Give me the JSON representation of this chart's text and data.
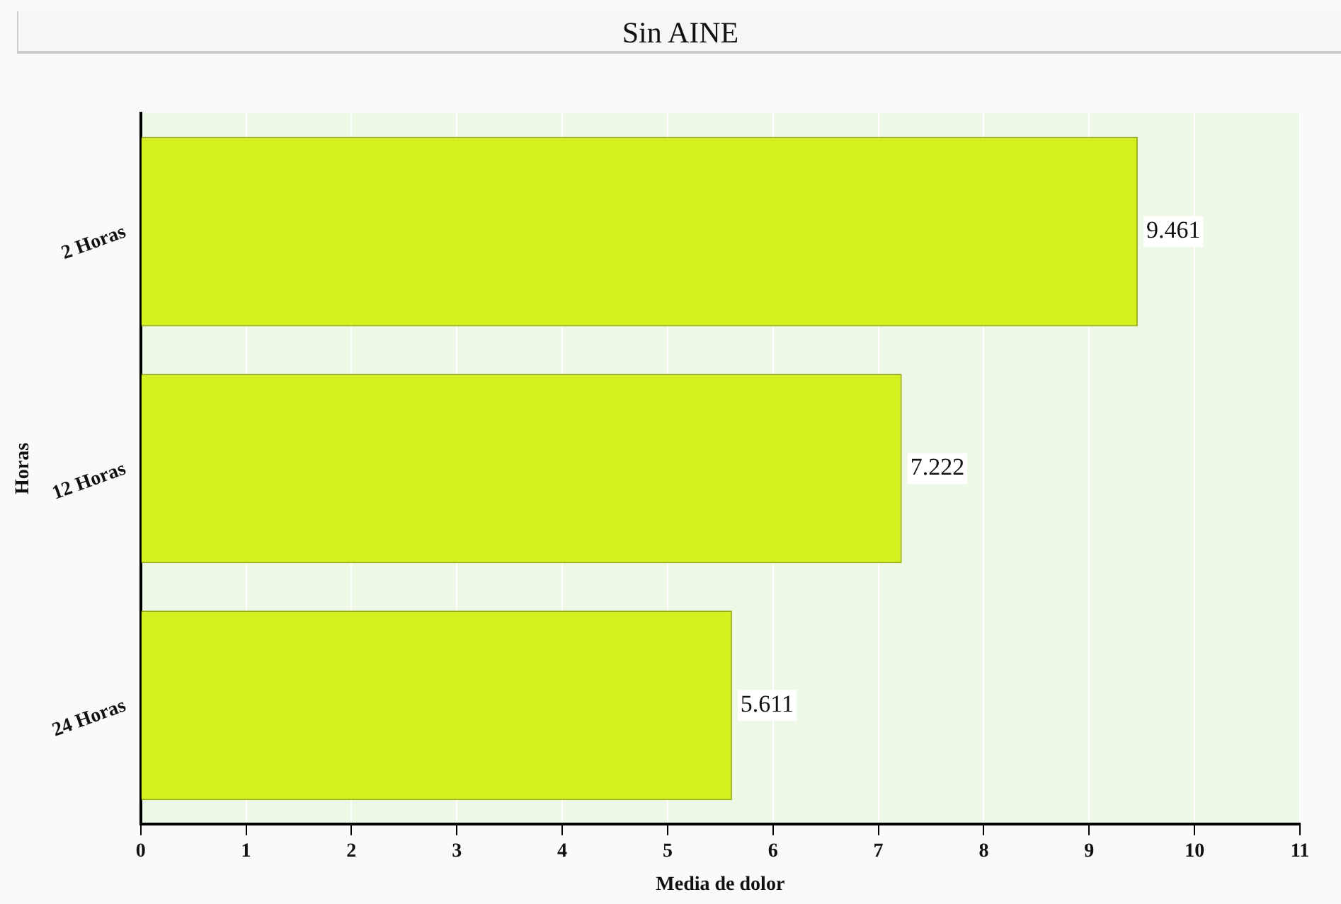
{
  "chart_data": {
    "type": "bar",
    "orientation": "horizontal",
    "title": "Sin AINE",
    "xlabel": "Media de dolor",
    "ylabel": "Horas",
    "categories": [
      "2 Horas",
      "12 Horas",
      "24 Horas"
    ],
    "values": [
      9.461,
      7.222,
      5.611
    ],
    "color": "#d4f01e",
    "xlim": [
      0,
      11
    ],
    "xticks": [
      0,
      1,
      2,
      3,
      4,
      5,
      6,
      7,
      8,
      9,
      10,
      11
    ],
    "grid": "x",
    "data_labels": true,
    "legend": false
  }
}
